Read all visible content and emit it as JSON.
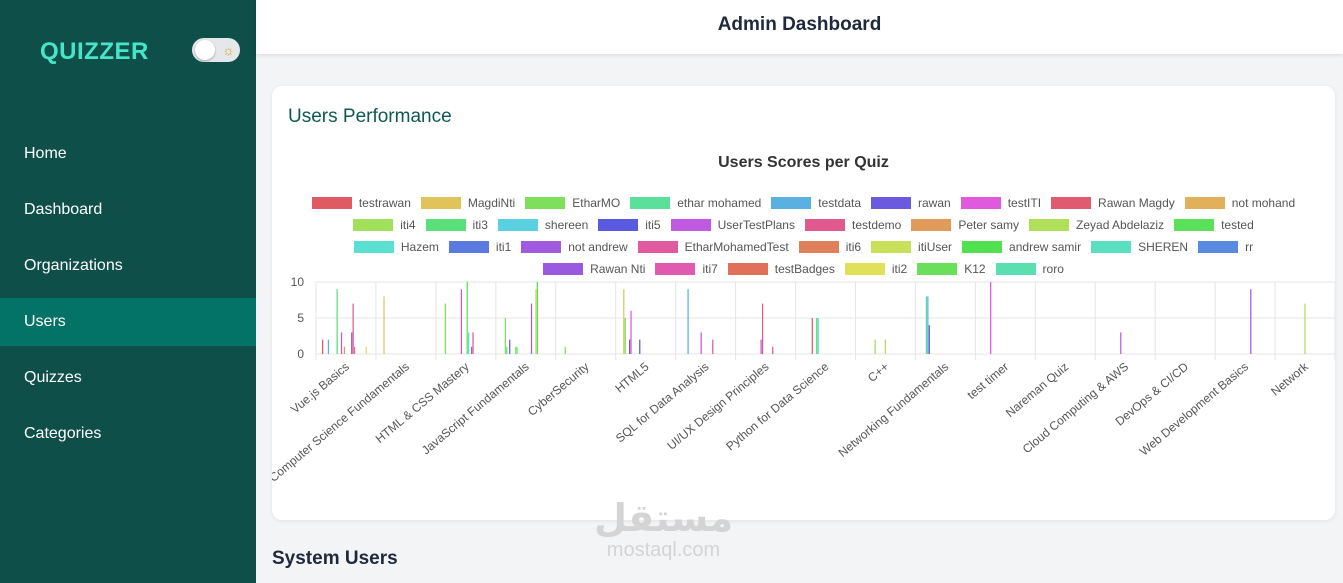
{
  "sidebar": {
    "brand": "QUIZZER",
    "items": [
      {
        "label": "Home",
        "active": false
      },
      {
        "label": "Dashboard",
        "active": false
      },
      {
        "label": "Organizations",
        "active": false
      },
      {
        "label": "Users",
        "active": true
      },
      {
        "label": "Quizzes",
        "active": false
      },
      {
        "label": "Categories",
        "active": false
      }
    ],
    "theme_toggle_icon": "sun-icon"
  },
  "header": {
    "title": "Admin Dashboard"
  },
  "performance_card": {
    "title": "Users Performance"
  },
  "system_users": {
    "title": "System Users"
  },
  "watermark": {
    "arabic": "مستقل",
    "latin": "mostaql.com"
  },
  "chart_data": {
    "type": "bar",
    "title": "Users Scores per Quiz",
    "legend_position": "top",
    "grid": true,
    "ylim": [
      0,
      10
    ],
    "yticks": [
      0,
      5,
      10
    ],
    "categories": [
      "Vue.js Basics",
      "Computer Science Fundamentals",
      "HTML & CSS Mastery",
      "JavaScript Fundamentals",
      "CyberSecurity",
      "HTML5",
      "SQL for Data Analysis",
      "UI/UX Design Principles",
      "Python for Data Science",
      "C++",
      "Networking Fundamentals",
      "test timer",
      "Nareman Quiz",
      "Cloud Computing & AWS",
      "DevOps & CI/CD",
      "Web Development Basics",
      "Network"
    ],
    "series": [
      {
        "name": "testrawan",
        "color": "#e05a64",
        "values": [
          2,
          0,
          0,
          0,
          0,
          0,
          0,
          0,
          0,
          0,
          0,
          0,
          0,
          0,
          0,
          0,
          0
        ]
      },
      {
        "name": "MagdiNti",
        "color": "#e0c45a",
        "values": [
          0,
          8,
          0,
          0,
          0,
          9,
          0,
          0,
          0,
          0,
          0,
          0,
          0,
          0,
          0,
          0,
          0
        ]
      },
      {
        "name": "EtharMO",
        "color": "#7ee05a",
        "values": [
          0,
          0,
          7,
          5,
          1,
          5,
          0,
          0,
          0,
          0,
          0,
          0,
          0,
          0,
          0,
          0,
          0
        ]
      },
      {
        "name": "ethar mohamed",
        "color": "#5ae09a",
        "values": [
          0,
          0,
          0,
          1,
          0,
          0,
          0,
          0,
          0,
          0,
          8,
          0,
          0,
          0,
          0,
          0,
          0
        ]
      },
      {
        "name": "testdata",
        "color": "#5ab0e0",
        "values": [
          2,
          0,
          0,
          0,
          0,
          0,
          9,
          0,
          0,
          0,
          8,
          0,
          0,
          0,
          0,
          0,
          0
        ]
      },
      {
        "name": "rawan",
        "color": "#6a5ae0",
        "values": [
          0,
          0,
          0,
          2,
          0,
          2,
          0,
          0,
          0,
          0,
          4,
          0,
          0,
          0,
          0,
          0,
          0
        ]
      },
      {
        "name": "testITI",
        "color": "#e05ae0",
        "values": [
          0,
          0,
          0,
          0,
          0,
          6,
          0,
          0,
          0,
          0,
          0,
          10,
          0,
          0,
          0,
          0,
          0
        ]
      },
      {
        "name": "Rawan Magdy",
        "color": "#e05a70",
        "values": [
          0,
          0,
          0,
          0,
          0,
          0,
          0,
          0,
          5,
          0,
          0,
          0,
          0,
          0,
          0,
          0,
          0
        ]
      },
      {
        "name": "not mohand",
        "color": "#e0b05a",
        "values": [
          0,
          0,
          0,
          0,
          0,
          0,
          0,
          0,
          0,
          0,
          0,
          0,
          0,
          0,
          0,
          0,
          0
        ]
      },
      {
        "name": "iti4",
        "color": "#a0e05a",
        "values": [
          0,
          0,
          0,
          1,
          0,
          0,
          0,
          0,
          0,
          2,
          0,
          0,
          0,
          0,
          0,
          0,
          0
        ]
      },
      {
        "name": "iti3",
        "color": "#5ae07a",
        "values": [
          9,
          0,
          0,
          1,
          0,
          0,
          0,
          0,
          5,
          0,
          0,
          0,
          0,
          0,
          0,
          0,
          0
        ]
      },
      {
        "name": "shereen",
        "color": "#5ad0e0",
        "values": [
          0,
          0,
          0,
          0,
          0,
          0,
          0,
          0,
          5,
          0,
          0,
          0,
          0,
          0,
          0,
          0,
          0
        ]
      },
      {
        "name": "iti5",
        "color": "#5a5ae0",
        "values": [
          0,
          0,
          0,
          0,
          0,
          2,
          0,
          0,
          0,
          0,
          0,
          0,
          0,
          0,
          0,
          0,
          0
        ]
      },
      {
        "name": "UserTestPlans",
        "color": "#c05ae0",
        "values": [
          3,
          0,
          9,
          0,
          0,
          0,
          3,
          2,
          0,
          0,
          0,
          0,
          0,
          3,
          0,
          0,
          0
        ]
      },
      {
        "name": "testdemo",
        "color": "#e05a90",
        "values": [
          0,
          0,
          0,
          0,
          0,
          0,
          0,
          7,
          0,
          0,
          0,
          0,
          0,
          0,
          0,
          0,
          0
        ]
      },
      {
        "name": "Peter samy",
        "color": "#e09a5a",
        "values": [
          1,
          0,
          0,
          0,
          0,
          0,
          0,
          0,
          0,
          0,
          0,
          0,
          0,
          0,
          0,
          0,
          0
        ]
      },
      {
        "name": "Zeyad Abdelaziz",
        "color": "#b0e05a",
        "values": [
          0,
          0,
          0,
          0,
          0,
          0,
          0,
          0,
          0,
          2,
          0,
          0,
          0,
          0,
          0,
          0,
          7
        ]
      },
      {
        "name": "tested",
        "color": "#5ae05a",
        "values": [
          0,
          0,
          10,
          0,
          0,
          0,
          0,
          0,
          0,
          0,
          0,
          0,
          0,
          0,
          0,
          0,
          0
        ]
      },
      {
        "name": "Hazem",
        "color": "#5ae0d0",
        "values": [
          0,
          0,
          3,
          0,
          0,
          0,
          0,
          0,
          0,
          0,
          0,
          0,
          0,
          0,
          0,
          0,
          0
        ]
      },
      {
        "name": "iti1",
        "color": "#5a7ae0",
        "values": [
          0,
          0,
          0,
          0,
          0,
          0,
          0,
          0,
          0,
          0,
          0,
          0,
          0,
          0,
          0,
          0,
          0
        ]
      },
      {
        "name": "not andrew",
        "color": "#a05ae0",
        "values": [
          3,
          0,
          1,
          7,
          0,
          0,
          0,
          0,
          0,
          0,
          0,
          0,
          0,
          0,
          0,
          9,
          0
        ]
      },
      {
        "name": "EtharMohamedTest",
        "color": "#e05aa0",
        "values": [
          7,
          0,
          3,
          0,
          0,
          0,
          2,
          1,
          0,
          0,
          0,
          0,
          0,
          0,
          0,
          0,
          0
        ]
      },
      {
        "name": "iti6",
        "color": "#e0805a",
        "values": [
          1,
          0,
          0,
          0,
          0,
          0,
          0,
          0,
          0,
          0,
          0,
          0,
          0,
          0,
          0,
          0,
          0
        ]
      },
      {
        "name": "itiUser",
        "color": "#c8e05a",
        "values": [
          0,
          0,
          0,
          9,
          0,
          0,
          0,
          0,
          0,
          0,
          0,
          0,
          0,
          0,
          0,
          0,
          0
        ]
      },
      {
        "name": "andrew samir",
        "color": "#50e050",
        "values": [
          0,
          0,
          0,
          10,
          0,
          0,
          0,
          0,
          0,
          0,
          0,
          0,
          0,
          0,
          0,
          0,
          0
        ]
      },
      {
        "name": "SHEREN",
        "color": "#5ae0c0",
        "values": [
          0,
          0,
          0,
          0,
          0,
          0,
          0,
          0,
          0,
          0,
          0,
          0,
          0,
          0,
          0,
          0,
          0
        ]
      },
      {
        "name": "rr",
        "color": "#5a8ae0",
        "values": [
          0,
          0,
          0,
          0,
          0,
          0,
          0,
          0,
          0,
          0,
          0,
          0,
          0,
          0,
          0,
          0,
          0
        ]
      },
      {
        "name": "Rawan Nti",
        "color": "#9a5ae0",
        "values": [
          0,
          0,
          0,
          0,
          0,
          0,
          0,
          0,
          0,
          0,
          0,
          0,
          0,
          0,
          0,
          0,
          0
        ]
      },
      {
        "name": "iti7",
        "color": "#e05ab0",
        "values": [
          0,
          0,
          0,
          0,
          0,
          0,
          0,
          0,
          0,
          0,
          0,
          0,
          0,
          0,
          0,
          0,
          0
        ]
      },
      {
        "name": "testBadges",
        "color": "#e0705a",
        "values": [
          0,
          0,
          0,
          0,
          0,
          0,
          0,
          0,
          0,
          0,
          0,
          0,
          0,
          0,
          0,
          0,
          0
        ]
      },
      {
        "name": "iti2",
        "color": "#e0e05a",
        "values": [
          1,
          0,
          0,
          0,
          0,
          0,
          0,
          0,
          0,
          0,
          0,
          0,
          0,
          0,
          0,
          0,
          0
        ]
      },
      {
        "name": "K12",
        "color": "#6ae05a",
        "values": [
          0,
          0,
          0,
          0,
          0,
          0,
          0,
          0,
          0,
          0,
          0,
          0,
          0,
          0,
          0,
          0,
          0
        ]
      },
      {
        "name": "roro",
        "color": "#5ae0b0",
        "values": [
          0,
          0,
          0,
          0,
          0,
          0,
          0,
          0,
          0,
          0,
          0,
          0,
          0,
          0,
          0,
          0,
          0
        ]
      }
    ]
  }
}
